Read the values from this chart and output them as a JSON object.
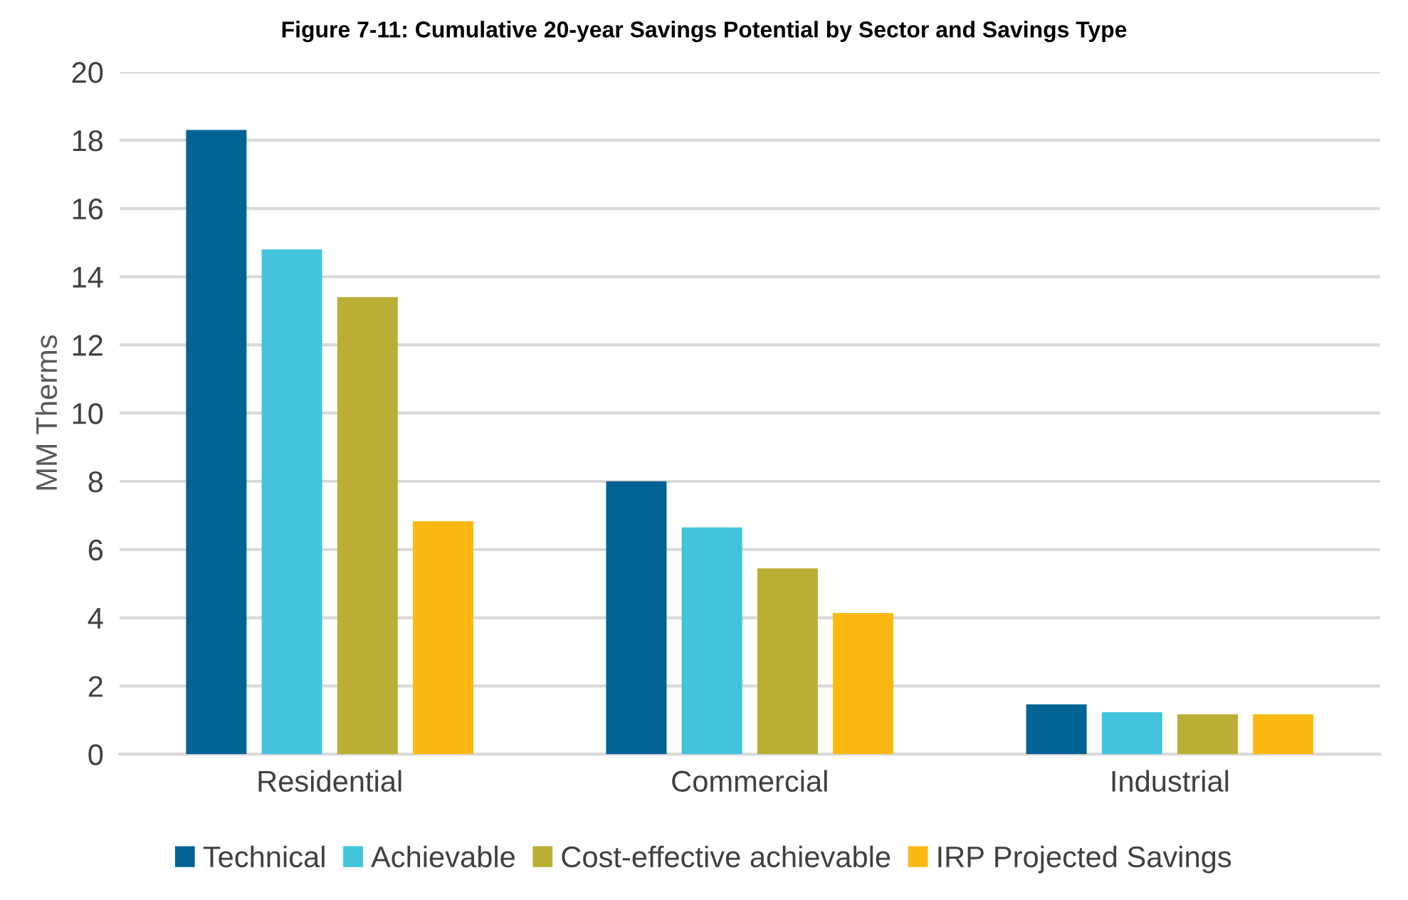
{
  "chart_data": {
    "type": "bar",
    "title": "Figure 7-11: Cumulative 20-year Savings Potential by Sector and Savings Type",
    "ylabel": "MM Therms",
    "categories": [
      "Residential",
      "Commercial",
      "Industrial"
    ],
    "series": [
      {
        "name": "Technical",
        "color": "#006394",
        "values": [
          18.3,
          8.0,
          1.46
        ]
      },
      {
        "name": "Achievable",
        "color": "#41c4dc",
        "values": [
          14.8,
          6.65,
          1.23
        ]
      },
      {
        "name": "Cost-effective achievable",
        "color": "#baaf34",
        "values": [
          13.4,
          5.45,
          1.17
        ]
      },
      {
        "name": "IRP Projected Savings",
        "color": "#fdb813",
        "values": [
          6.83,
          4.14,
          1.17
        ]
      }
    ],
    "ylim": [
      0,
      20
    ],
    "yticks": [
      0,
      2,
      4,
      6,
      8,
      10,
      12,
      14,
      16,
      18,
      20
    ],
    "grid": "y",
    "legend": "bottom"
  }
}
